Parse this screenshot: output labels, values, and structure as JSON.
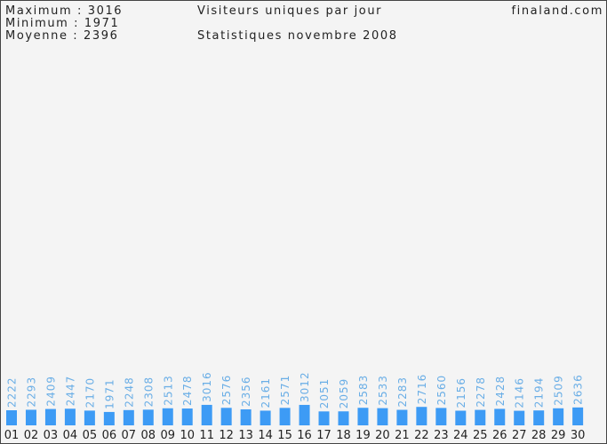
{
  "chart_data": {
    "type": "bar",
    "title": "Visiteurs uniques par jour",
    "subtitle": "Statistiques novembre 2008",
    "site": "finaland.com",
    "stats": [
      "Maximum : 3016",
      "Minimum : 1971",
      "Moyenne : 2396"
    ],
    "categories": [
      "01",
      "02",
      "03",
      "04",
      "05",
      "06",
      "07",
      "08",
      "09",
      "10",
      "11",
      "12",
      "13",
      "14",
      "15",
      "16",
      "17",
      "18",
      "19",
      "20",
      "21",
      "22",
      "23",
      "24",
      "25",
      "26",
      "27",
      "28",
      "29",
      "30"
    ],
    "values": [
      2222,
      2293,
      2409,
      2447,
      2170,
      1971,
      2248,
      2308,
      2513,
      2478,
      3016,
      2576,
      2356,
      2161,
      2571,
      3012,
      2051,
      2059,
      2583,
      2533,
      2283,
      2716,
      2560,
      2156,
      2278,
      2428,
      2146,
      2194,
      2509,
      2636
    ],
    "color": "#3d9bf5",
    "label_color": "#6aaee6",
    "ylim": [
      0,
      60000
    ]
  }
}
